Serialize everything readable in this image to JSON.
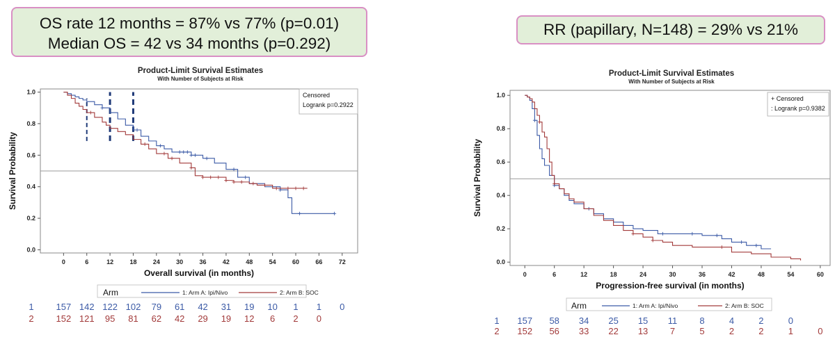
{
  "callouts": {
    "left_line1": "OS rate 12 months = 87% vs 77% (p=0.01)",
    "left_line2": "Median OS = 42 vs 34 months (p=0.292)",
    "right": "RR (papillary, N=148) = 29% vs 21%"
  },
  "colors": {
    "arm_a": "#3b5aa6",
    "arm_b": "#a23a3a",
    "ref_line": "#9a9a9a",
    "frame": "#888888",
    "dash_lines": "#1f3a78"
  },
  "chart_data": [
    {
      "type": "line",
      "title": "Product-Limit Survival Estimates",
      "subtitle": "With Number of Subjects at Risk",
      "xlabel": "Overall survival (in months)",
      "ylabel": "Survival Probability",
      "xlim": [
        -6,
        76
      ],
      "ylim": [
        -0.02,
        1.02
      ],
      "xticks": [
        0,
        6,
        12,
        18,
        24,
        30,
        36,
        42,
        48,
        54,
        60,
        66,
        72
      ],
      "yticks": [
        "0.0",
        "0.2",
        "0.4",
        "0.6",
        "0.8",
        "1.0"
      ],
      "ytick_values": [
        0,
        0.2,
        0.4,
        0.6,
        0.8,
        1.0
      ],
      "reference_line_y": 0.5,
      "dashed_x": [
        6,
        12,
        18
      ],
      "legend_box": [
        "Censored",
        "Logrank p=0.2922"
      ],
      "legend_title": "Arm",
      "series": [
        {
          "name": "1: Arm A: Ipi/Nivo",
          "color_key": "arm_a",
          "x": [
            0,
            1,
            2,
            3,
            4,
            5,
            6,
            8,
            10,
            12,
            14,
            16,
            18,
            20,
            22,
            24,
            26,
            28,
            30,
            33,
            36,
            39,
            42,
            45,
            48,
            52,
            56,
            58,
            59,
            60,
            65,
            70
          ],
          "y": [
            1.0,
            0.99,
            0.98,
            0.97,
            0.96,
            0.95,
            0.94,
            0.92,
            0.9,
            0.87,
            0.83,
            0.79,
            0.76,
            0.72,
            0.69,
            0.66,
            0.64,
            0.62,
            0.62,
            0.6,
            0.58,
            0.55,
            0.51,
            0.46,
            0.42,
            0.4,
            0.38,
            0.33,
            0.23,
            0.23,
            0.23,
            0.23
          ],
          "censor_x": [
            2,
            10,
            19,
            25,
            30,
            31,
            32,
            33,
            34,
            37,
            44,
            47,
            56,
            61,
            70
          ]
        },
        {
          "name": "2: Arm B: SOC",
          "color_key": "arm_b",
          "x": [
            0,
            1,
            2,
            3,
            4,
            5,
            6,
            8,
            10,
            11,
            12,
            14,
            16,
            18,
            20,
            22,
            24,
            27,
            30,
            33,
            34,
            36,
            40,
            42,
            44,
            48,
            50,
            54,
            56,
            63
          ],
          "y": [
            1.0,
            0.98,
            0.96,
            0.93,
            0.91,
            0.89,
            0.87,
            0.84,
            0.81,
            0.79,
            0.77,
            0.75,
            0.73,
            0.7,
            0.67,
            0.64,
            0.61,
            0.58,
            0.55,
            0.52,
            0.47,
            0.46,
            0.46,
            0.44,
            0.43,
            0.42,
            0.41,
            0.39,
            0.39,
            0.39
          ],
          "censor_x": [
            7,
            21,
            26,
            28,
            33,
            36,
            38,
            40,
            42,
            44,
            46,
            49,
            52,
            55,
            58,
            60,
            62
          ]
        }
      ],
      "risk_table": {
        "labels": [
          "1",
          "2"
        ],
        "rows": [
          [
            157,
            142,
            122,
            102,
            79,
            61,
            42,
            31,
            19,
            10,
            1,
            1,
            0
          ],
          [
            152,
            121,
            95,
            81,
            62,
            42,
            29,
            19,
            12,
            6,
            2,
            0
          ]
        ]
      }
    },
    {
      "type": "line",
      "title": "Product-Limit Survival Estimates",
      "subtitle": "With Number of Subjects at Risk",
      "xlabel": "Progression-free survival (in months)",
      "ylabel": "Survival Probability",
      "xlim": [
        -3,
        62
      ],
      "ylim": [
        -0.02,
        1.03
      ],
      "xticks": [
        0,
        6,
        12,
        18,
        24,
        30,
        36,
        42,
        48,
        54,
        60
      ],
      "yticks": [
        "0.0",
        "0.2",
        "0.4",
        "0.6",
        "0.8",
        "1.0"
      ],
      "ytick_values": [
        0,
        0.2,
        0.4,
        0.6,
        0.8,
        1.0
      ],
      "reference_line_y": 0.5,
      "dashed_x": [],
      "legend_box": [
        "+ Censored",
        ": Logrank p=0.9382"
      ],
      "legend_title": "Arm",
      "series": [
        {
          "name": "1: Arm A: Ipi/Nivo",
          "color_key": "arm_a",
          "x": [
            0,
            0.5,
            1,
            1.5,
            2,
            2.5,
            3,
            3.5,
            4,
            5,
            6,
            7,
            8,
            9,
            10,
            12,
            14,
            16,
            18,
            20,
            22,
            24,
            27,
            30,
            33,
            36,
            40,
            42,
            45,
            48,
            50
          ],
          "y": [
            1.0,
            0.99,
            0.97,
            0.92,
            0.85,
            0.76,
            0.68,
            0.62,
            0.58,
            0.52,
            0.46,
            0.44,
            0.4,
            0.37,
            0.35,
            0.32,
            0.29,
            0.26,
            0.24,
            0.22,
            0.2,
            0.19,
            0.17,
            0.17,
            0.17,
            0.16,
            0.14,
            0.12,
            0.1,
            0.08,
            0.08
          ],
          "censor_x": [
            2,
            6,
            13,
            28,
            34,
            39,
            44,
            47
          ]
        },
        {
          "name": "2: Arm B: SOC",
          "color_key": "arm_b",
          "x": [
            0,
            0.5,
            1,
            1.5,
            2,
            2.5,
            3,
            3.5,
            4,
            4.5,
            5,
            5.5,
            6,
            7,
            8,
            9,
            10,
            12,
            14,
            16,
            18,
            20,
            22,
            24,
            26,
            28,
            30,
            34,
            38,
            42,
            46,
            50,
            54,
            56
          ],
          "y": [
            1.0,
            0.99,
            0.98,
            0.96,
            0.92,
            0.88,
            0.84,
            0.78,
            0.75,
            0.68,
            0.6,
            0.52,
            0.47,
            0.44,
            0.41,
            0.38,
            0.36,
            0.32,
            0.28,
            0.25,
            0.22,
            0.19,
            0.17,
            0.15,
            0.13,
            0.12,
            0.1,
            0.09,
            0.09,
            0.06,
            0.05,
            0.03,
            0.02,
            0.01
          ],
          "censor_x": [
            3,
            6,
            22,
            26,
            40
          ]
        }
      ],
      "risk_table": {
        "labels": [
          "1",
          "2"
        ],
        "rows": [
          [
            157,
            58,
            34,
            25,
            15,
            11,
            8,
            4,
            2,
            0
          ],
          [
            152,
            56,
            33,
            22,
            13,
            7,
            5,
            2,
            2,
            1,
            0
          ]
        ]
      }
    }
  ]
}
